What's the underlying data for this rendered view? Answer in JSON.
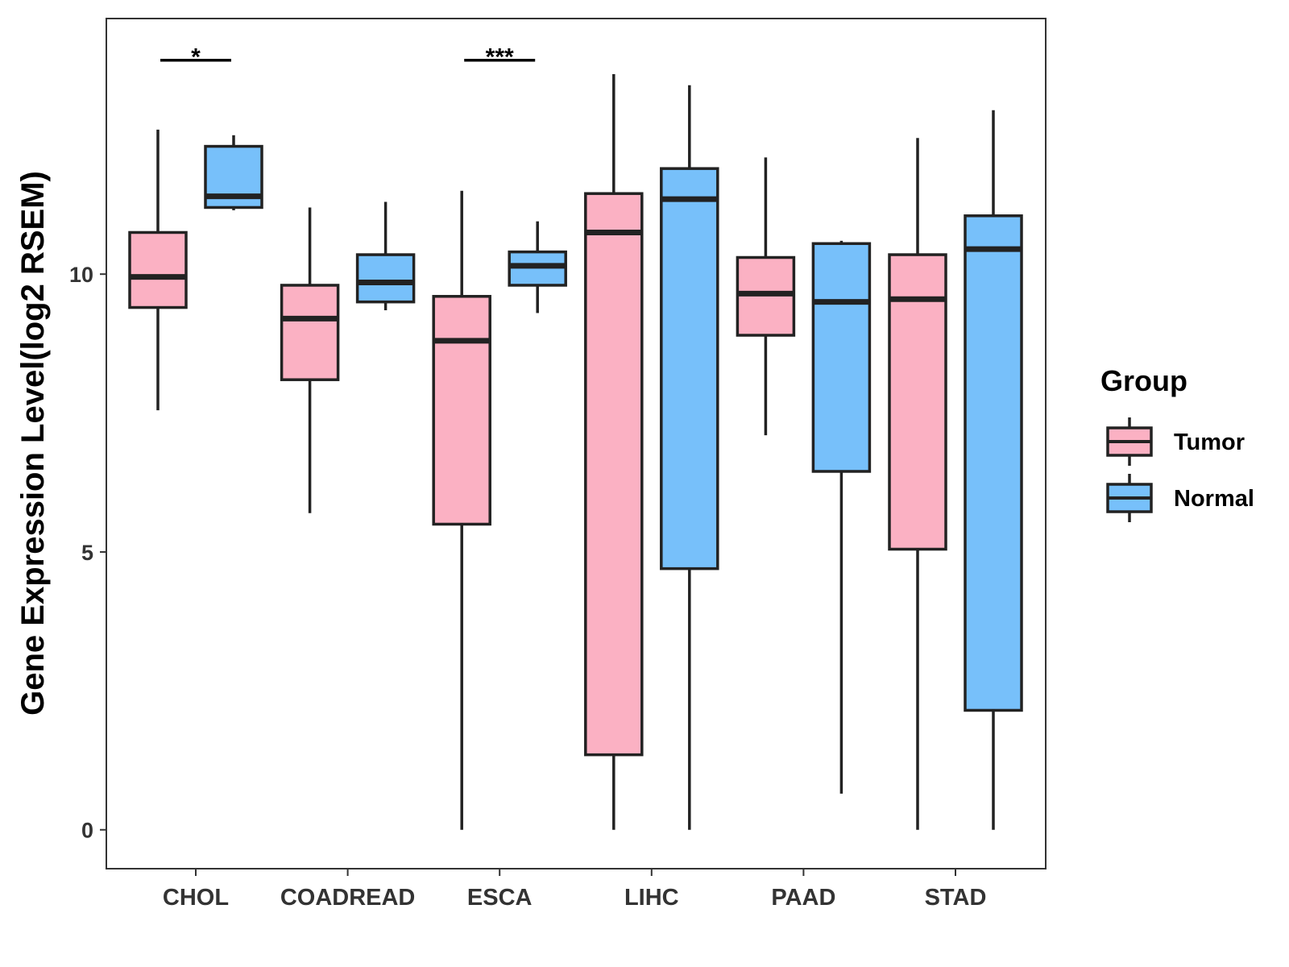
{
  "chart_data": {
    "type": "boxplot",
    "title": "",
    "xlabel": "",
    "ylabel": "Gene Expression Level(log2 RSEM)",
    "ylim": [
      -0.7,
      14.6
    ],
    "yticks": [
      0,
      5,
      10
    ],
    "categories": [
      "CHOL",
      "COADREAD",
      "ESCA",
      "LIHC",
      "PAAD",
      "STAD"
    ],
    "legend": {
      "title": "Group",
      "position": "right",
      "entries": [
        "Tumor",
        "Normal"
      ]
    },
    "series": [
      {
        "name": "Tumor",
        "color": "#fbb1c3",
        "boxes": [
          {
            "min": 7.55,
            "q1": 9.4,
            "median": 9.95,
            "q3": 10.75,
            "max": 12.6
          },
          {
            "min": 5.7,
            "q1": 8.1,
            "median": 9.2,
            "q3": 9.8,
            "max": 11.2
          },
          {
            "min": 0.0,
            "q1": 5.5,
            "median": 8.8,
            "q3": 9.6,
            "max": 11.5
          },
          {
            "min": 0.0,
            "q1": 1.35,
            "median": 10.75,
            "q3": 11.45,
            "max": 13.6
          },
          {
            "min": 7.1,
            "q1": 8.9,
            "median": 9.65,
            "q3": 10.3,
            "max": 12.1
          },
          {
            "min": 0.0,
            "q1": 5.05,
            "median": 9.55,
            "q3": 10.35,
            "max": 12.45
          }
        ]
      },
      {
        "name": "Normal",
        "color": "#77c0fa",
        "boxes": [
          {
            "min": 11.15,
            "q1": 11.2,
            "median": 11.4,
            "q3": 12.3,
            "max": 12.5
          },
          {
            "min": 9.35,
            "q1": 9.5,
            "median": 9.85,
            "q3": 10.35,
            "max": 11.3
          },
          {
            "min": 9.3,
            "q1": 9.8,
            "median": 10.15,
            "q3": 10.4,
            "max": 10.95
          },
          {
            "min": 0.0,
            "q1": 4.7,
            "median": 11.35,
            "q3": 11.9,
            "max": 13.4
          },
          {
            "min": 0.65,
            "q1": 6.45,
            "median": 9.5,
            "q3": 10.55,
            "max": 10.6
          },
          {
            "min": 0.0,
            "q1": 2.15,
            "median": 10.45,
            "q3": 11.05,
            "max": 12.95
          }
        ]
      }
    ],
    "significance": [
      {
        "category": "CHOL",
        "label": "*",
        "y": 13.85
      },
      {
        "category": "ESCA",
        "label": "***",
        "y": 13.85
      }
    ]
  }
}
